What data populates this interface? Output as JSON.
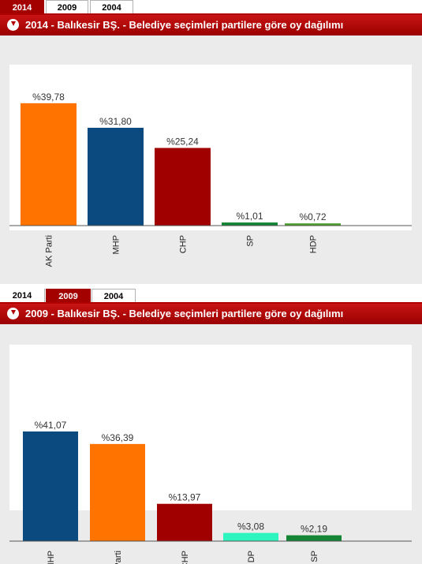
{
  "tabs": [
    "2014",
    "2009",
    "2004"
  ],
  "panels": [
    {
      "active_tab": "2014",
      "title": "2014 - Balıkesir BŞ. - Belediye seçimleri partilere göre oy dağılımı"
    },
    {
      "active_tab": "2009",
      "title": "2009 - Balıkesir BŞ. - Belediye seçimleri partilere göre oy dağılımı"
    }
  ],
  "colors": {
    "AK Parti": "#ff7300",
    "MHP": "#0b4a7f",
    "CHP": "#a00000",
    "SP": "#138535",
    "HDP": "#4a9f2a",
    "DP": "#2ef5bf",
    "header": "#b00000"
  },
  "chart_data": [
    {
      "type": "bar",
      "title": "2014 - Balıkesir BŞ. - Belediye seçimleri partilere göre oy dağılımı",
      "categories": [
        "AK Parti",
        "MHP",
        "CHP",
        "SP",
        "HDP"
      ],
      "values": [
        39.78,
        31.8,
        25.24,
        1.01,
        0.72
      ],
      "labels": [
        "%39,78",
        "%31,80",
        "%25,24",
        "%1,01",
        "%0,72"
      ],
      "ylim": [
        0,
        40
      ]
    },
    {
      "type": "bar",
      "title": "2009 - Balıkesir BŞ. - Belediye seçimleri partilere göre oy dağılımı",
      "categories": [
        "MHP",
        "AK Parti",
        "CHP",
        "DP",
        "SP"
      ],
      "values": [
        41.07,
        36.39,
        13.97,
        3.08,
        2.19
      ],
      "labels": [
        "%41,07",
        "%36,39",
        "%13,97",
        "%3,08",
        "%2,19"
      ],
      "ylim": [
        0,
        41.07
      ]
    }
  ]
}
